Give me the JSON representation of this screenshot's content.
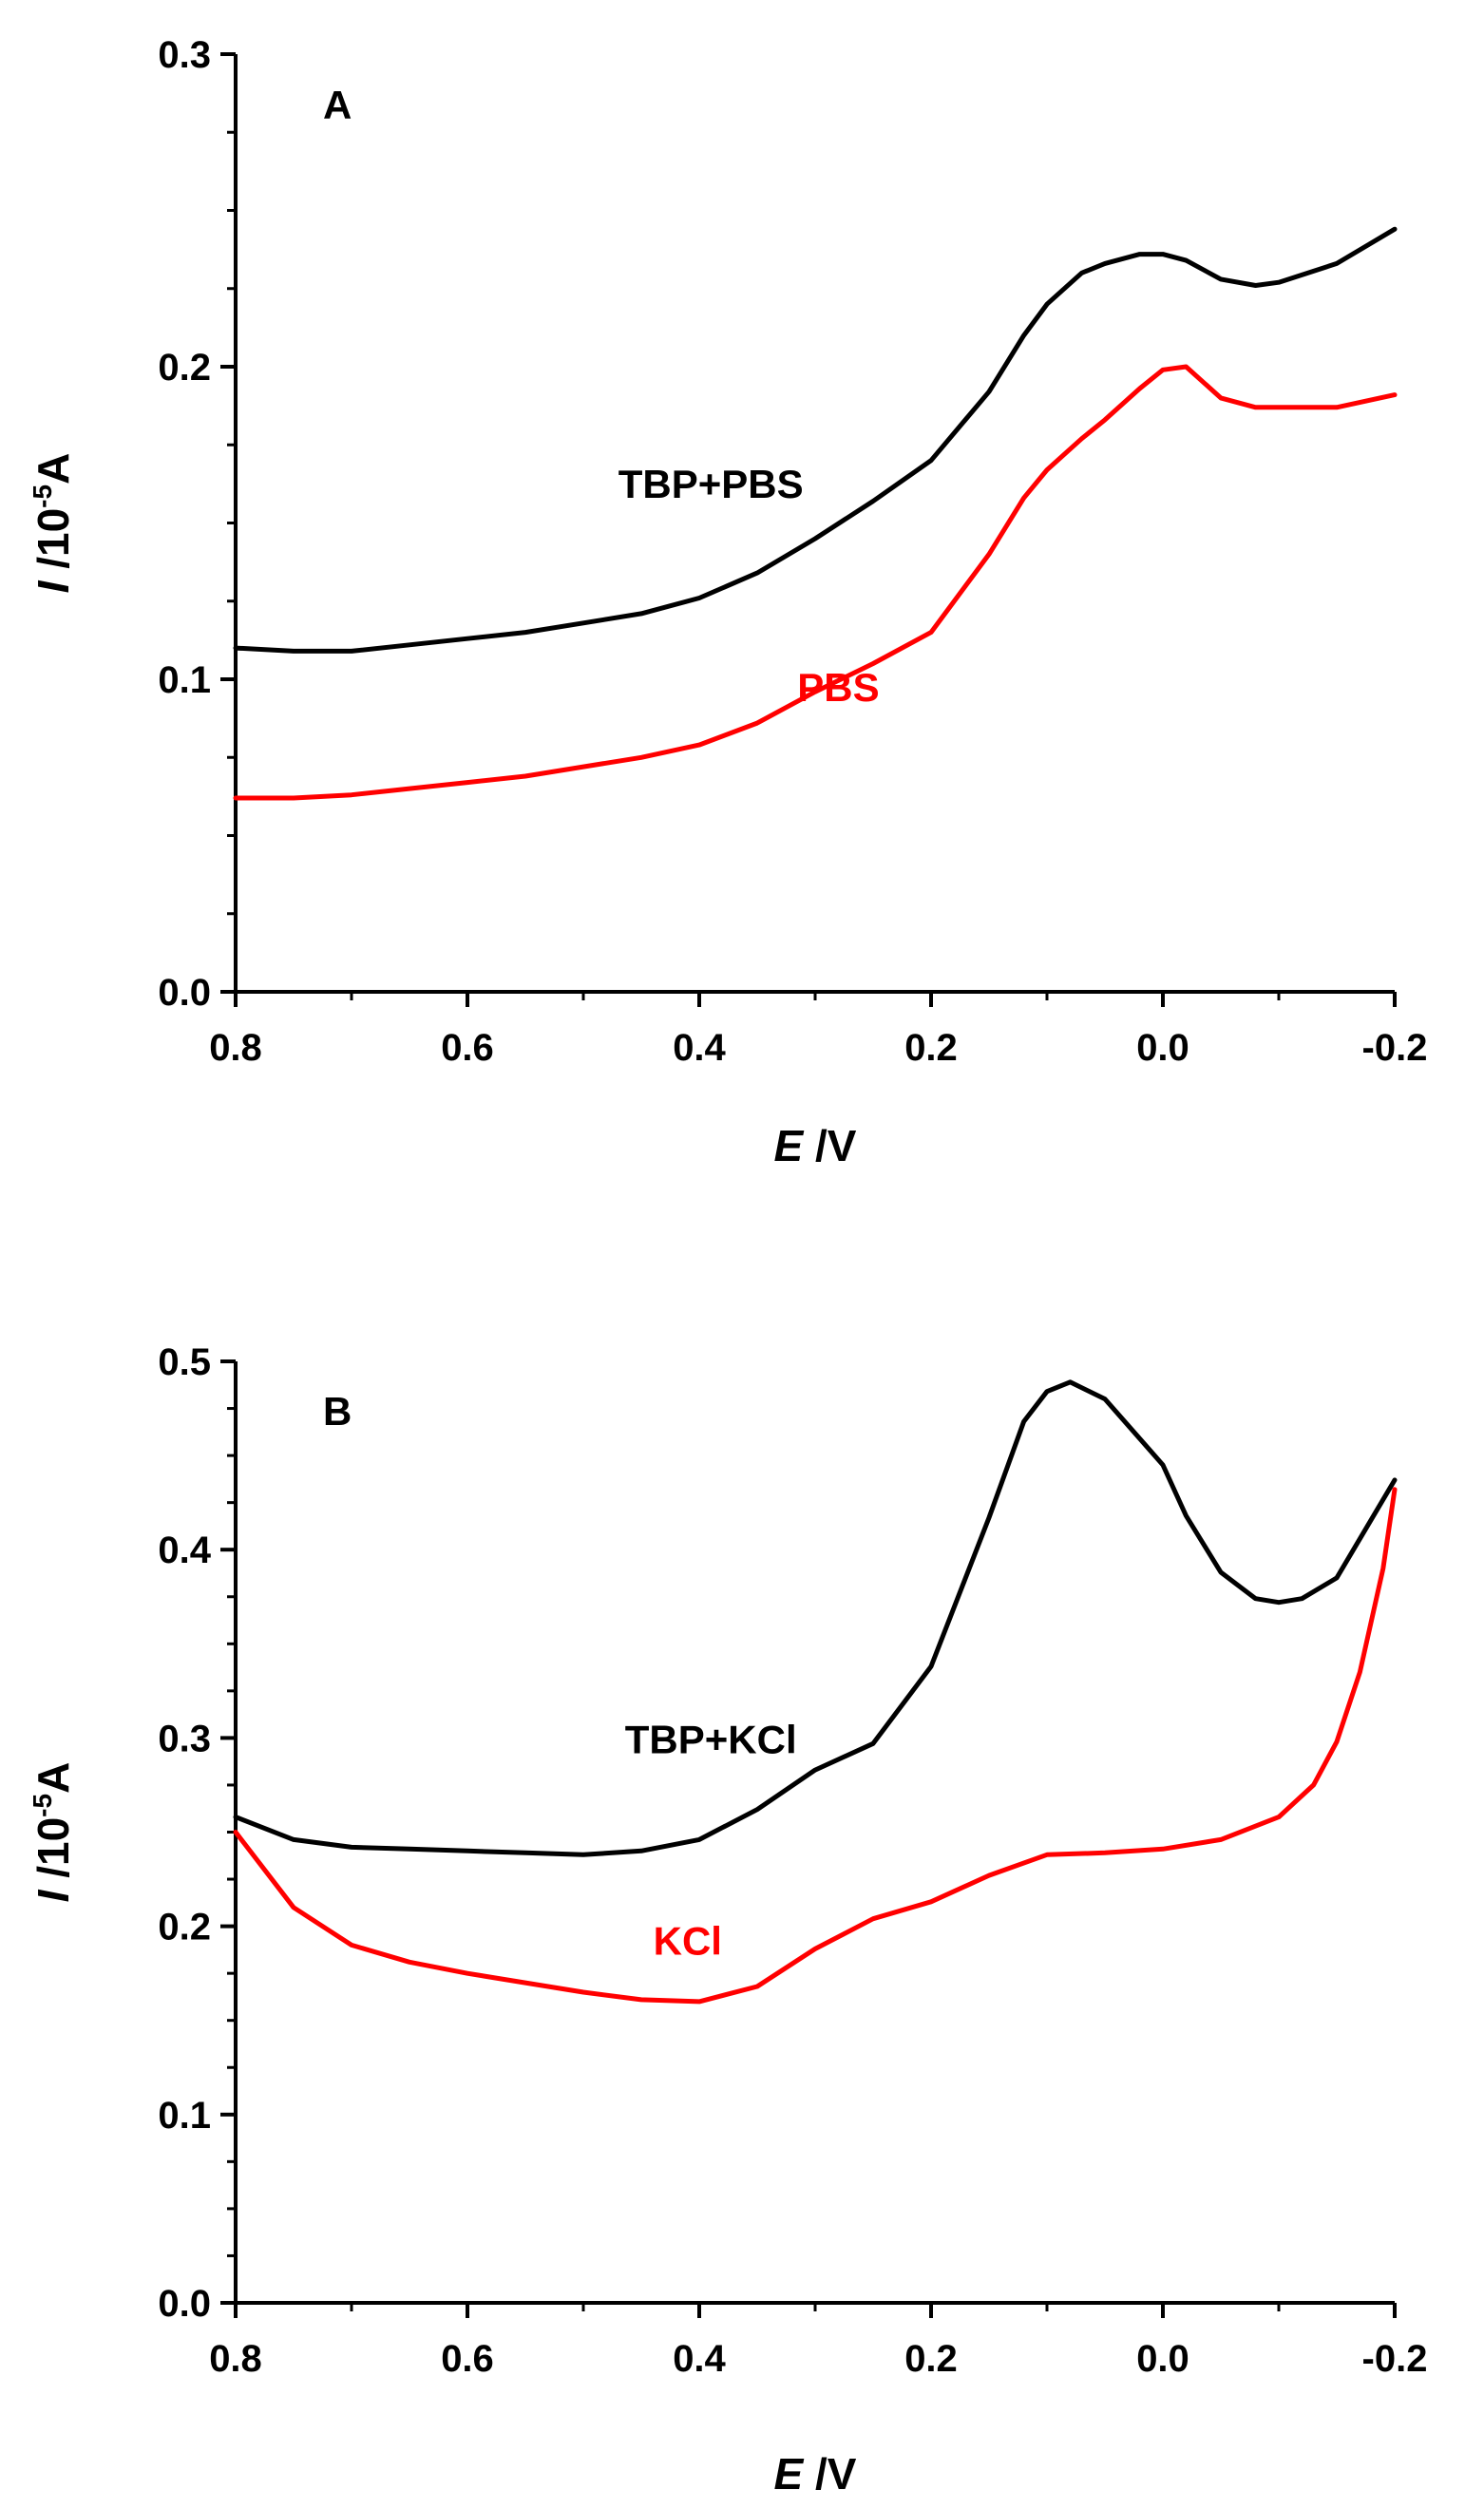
{
  "chart_data": [
    {
      "panel": "A",
      "type": "line",
      "title": "",
      "panel_label": "A",
      "xlabel": "E /V",
      "ylabel": "I /10-5A",
      "xlim": [
        0.8,
        -0.2
      ],
      "ylim": [
        0.0,
        0.3
      ],
      "xticks": [
        0.8,
        0.6,
        0.4,
        0.2,
        0.0,
        -0.2
      ],
      "xtick_labels": [
        "0.8",
        "0.6",
        "0.4",
        "0.2",
        "0.0",
        "-0.2"
      ],
      "yticks": [
        0.0,
        0.1,
        0.2,
        0.3
      ],
      "ytick_labels": [
        "0.0",
        "0.1",
        "0.2",
        "0.3"
      ],
      "series": [
        {
          "name": "TBP+PBS",
          "color": "#000000",
          "x": [
            0.8,
            0.75,
            0.7,
            0.65,
            0.6,
            0.55,
            0.5,
            0.45,
            0.4,
            0.35,
            0.3,
            0.25,
            0.2,
            0.15,
            0.12,
            0.1,
            0.07,
            0.05,
            0.02,
            0.0,
            -0.02,
            -0.05,
            -0.08,
            -0.1,
            -0.15,
            -0.2
          ],
          "y": [
            0.11,
            0.109,
            0.109,
            0.111,
            0.113,
            0.115,
            0.118,
            0.121,
            0.126,
            0.134,
            0.145,
            0.157,
            0.17,
            0.192,
            0.21,
            0.22,
            0.23,
            0.233,
            0.236,
            0.236,
            0.234,
            0.228,
            0.226,
            0.227,
            0.233,
            0.244
          ]
        },
        {
          "name": "PBS",
          "color": "#ff0000",
          "x": [
            0.8,
            0.75,
            0.7,
            0.65,
            0.6,
            0.55,
            0.5,
            0.45,
            0.4,
            0.35,
            0.3,
            0.25,
            0.2,
            0.15,
            0.12,
            0.1,
            0.07,
            0.05,
            0.02,
            0.0,
            -0.02,
            -0.05,
            -0.08,
            -0.1,
            -0.15,
            -0.2
          ],
          "y": [
            0.062,
            0.062,
            0.063,
            0.065,
            0.067,
            0.069,
            0.072,
            0.075,
            0.079,
            0.086,
            0.096,
            0.105,
            0.115,
            0.14,
            0.158,
            0.167,
            0.177,
            0.183,
            0.193,
            0.199,
            0.2,
            0.19,
            0.187,
            0.187,
            0.187,
            0.191
          ]
        }
      ],
      "annotations": [
        {
          "text": "TBP+PBS",
          "x": 0.39,
          "y": 0.158,
          "color": "#000000"
        },
        {
          "text": "PBS",
          "x": 0.28,
          "y": 0.093,
          "color": "#ff0000"
        }
      ]
    },
    {
      "panel": "B",
      "type": "line",
      "title": "",
      "panel_label": "B",
      "xlabel": "E /V",
      "ylabel": "I /10-5A",
      "xlim": [
        0.8,
        -0.2
      ],
      "ylim": [
        0.0,
        0.5
      ],
      "xticks": [
        0.8,
        0.6,
        0.4,
        0.2,
        0.0,
        -0.2
      ],
      "xtick_labels": [
        "0.8",
        "0.6",
        "0.4",
        "0.2",
        "0.0",
        "-0.2"
      ],
      "yticks": [
        0.0,
        0.1,
        0.2,
        0.3,
        0.4,
        0.5
      ],
      "ytick_labels": [
        "0.0",
        "0.1",
        "0.2",
        "0.3",
        "0.4",
        "0.5"
      ],
      "series": [
        {
          "name": "TBP+KCl",
          "color": "#000000",
          "x": [
            0.8,
            0.75,
            0.7,
            0.65,
            0.6,
            0.55,
            0.5,
            0.45,
            0.4,
            0.35,
            0.3,
            0.25,
            0.2,
            0.15,
            0.12,
            0.1,
            0.08,
            0.05,
            0.0,
            -0.02,
            -0.05,
            -0.08,
            -0.1,
            -0.12,
            -0.15,
            -0.2
          ],
          "y": [
            0.258,
            0.246,
            0.242,
            0.241,
            0.24,
            0.239,
            0.238,
            0.24,
            0.246,
            0.262,
            0.283,
            0.297,
            0.338,
            0.417,
            0.468,
            0.484,
            0.489,
            0.48,
            0.445,
            0.418,
            0.388,
            0.374,
            0.372,
            0.374,
            0.385,
            0.437
          ]
        },
        {
          "name": "KCl",
          "color": "#ff0000",
          "x": [
            0.8,
            0.75,
            0.7,
            0.65,
            0.6,
            0.55,
            0.5,
            0.45,
            0.4,
            0.35,
            0.3,
            0.25,
            0.2,
            0.15,
            0.1,
            0.05,
            0.0,
            -0.05,
            -0.1,
            -0.13,
            -0.15,
            -0.17,
            -0.19,
            -0.2
          ],
          "y": [
            0.25,
            0.21,
            0.19,
            0.181,
            0.175,
            0.17,
            0.165,
            0.161,
            0.16,
            0.168,
            0.188,
            0.204,
            0.213,
            0.227,
            0.238,
            0.239,
            0.241,
            0.246,
            0.258,
            0.275,
            0.298,
            0.335,
            0.39,
            0.432
          ]
        }
      ],
      "annotations": [
        {
          "text": "TBP+KCl",
          "x": 0.39,
          "y": 0.292,
          "color": "#000000"
        },
        {
          "text": "KCl",
          "x": 0.41,
          "y": 0.185,
          "color": "#ff0000"
        }
      ]
    }
  ]
}
